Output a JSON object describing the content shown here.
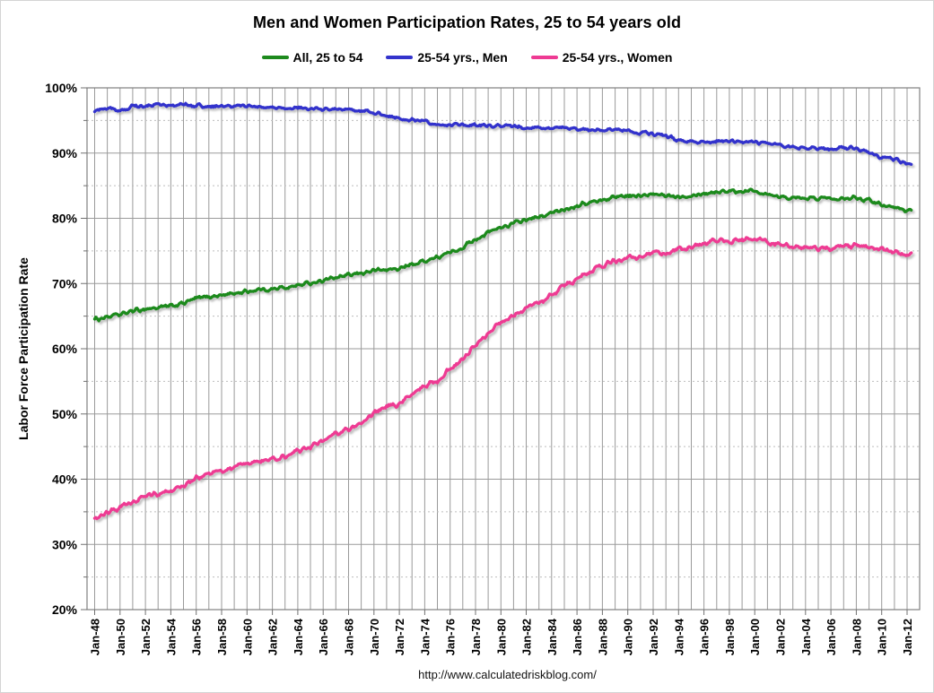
{
  "chart_data": {
    "type": "line",
    "title": "Men and Women Participation Rates, 25 to 54 years old",
    "ylabel": "Labor Force Participation Rate",
    "xlabel": "",
    "footer_url": "http://www.calculatedriskblog.com/",
    "ylim": [
      20,
      100
    ],
    "y_major_step": 10,
    "y_minor_step": 5,
    "y_tick_labels": [
      "100%",
      "90%",
      "80%",
      "70%",
      "60%",
      "50%",
      "40%",
      "30%",
      "20%"
    ],
    "x_start_year": 1948,
    "x_end_year": 2012,
    "x_extend_months": 4,
    "x_tick_interval_years": 2,
    "x_grid_interval_years": 1,
    "x_tick_labels": [
      "Jan-48",
      "Jan-50",
      "Jan-52",
      "Jan-54",
      "Jan-56",
      "Jan-58",
      "Jan-60",
      "Jan-62",
      "Jan-64",
      "Jan-66",
      "Jan-68",
      "Jan-70",
      "Jan-72",
      "Jan-74",
      "Jan-76",
      "Jan-78",
      "Jan-80",
      "Jan-82",
      "Jan-84",
      "Jan-86",
      "Jan-88",
      "Jan-90",
      "Jan-92",
      "Jan-94",
      "Jan-96",
      "Jan-98",
      "Jan-00",
      "Jan-02",
      "Jan-04",
      "Jan-06",
      "Jan-08",
      "Jan-10",
      "Jan-12"
    ],
    "legend_position": "top",
    "grid": {
      "major_color": "#9a9a9a",
      "minor_color": "#bdbdbd",
      "minor_dash": "2 3",
      "border_color": "#808080",
      "background": "#ffffff"
    },
    "annual_years_note": "values are annual anchors Jan-1948 through 2012, plotted monthly",
    "series": [
      {
        "name": "All, 25 to 54",
        "color": "#1D8A1D",
        "jitter": 0.45,
        "values": [
          64.5,
          64.9,
          65.2,
          65.8,
          66.1,
          66.3,
          66.5,
          67.0,
          67.7,
          68.0,
          68.2,
          68.5,
          68.8,
          69.1,
          69.1,
          69.4,
          69.7,
          70.1,
          70.5,
          70.9,
          71.2,
          71.6,
          72.0,
          72.1,
          72.3,
          72.9,
          73.5,
          74.0,
          74.7,
          75.6,
          76.8,
          77.8,
          78.6,
          79.2,
          79.8,
          80.1,
          80.8,
          81.4,
          82.0,
          82.4,
          82.8,
          83.3,
          83.5,
          83.4,
          83.6,
          83.5,
          83.4,
          83.6,
          83.8,
          84.1,
          84.2,
          84.2,
          84.2,
          83.8,
          83.4,
          83.1,
          83.0,
          83.1,
          83.1,
          83.2,
          83.2,
          82.8,
          82.2,
          81.6,
          81.3
        ]
      },
      {
        "name": "25-54 yrs., Men",
        "color": "#3333CC",
        "jitter": 0.4,
        "values": [
          96.6,
          96.9,
          96.4,
          97.1,
          97.2,
          97.4,
          97.3,
          97.4,
          97.3,
          97.2,
          97.1,
          97.3,
          97.2,
          97.1,
          96.9,
          96.9,
          96.9,
          96.8,
          96.7,
          96.6,
          96.6,
          96.5,
          96.1,
          95.7,
          95.3,
          95.1,
          94.8,
          94.4,
          94.3,
          94.3,
          94.3,
          94.3,
          94.2,
          94.1,
          94.0,
          93.9,
          93.9,
          93.8,
          93.7,
          93.6,
          93.6,
          93.6,
          93.5,
          93.2,
          93.0,
          92.7,
          91.9,
          91.7,
          91.7,
          91.8,
          91.9,
          91.8,
          91.7,
          91.4,
          91.1,
          90.9,
          90.8,
          90.7,
          90.7,
          90.9,
          90.8,
          90.1,
          89.4,
          89.0,
          88.4
        ]
      },
      {
        "name": "25-54 yrs., Women",
        "color": "#EE3A93",
        "jitter": 0.55,
        "values": [
          33.9,
          34.9,
          35.6,
          36.6,
          37.4,
          37.9,
          38.3,
          39.0,
          40.1,
          40.8,
          41.3,
          41.8,
          42.3,
          42.9,
          43.1,
          43.7,
          44.3,
          45.1,
          46.0,
          46.9,
          47.6,
          48.7,
          50.1,
          51.0,
          51.6,
          52.9,
          54.3,
          55.1,
          56.8,
          58.5,
          60.6,
          62.3,
          64.0,
          65.3,
          66.3,
          67.1,
          68.2,
          69.6,
          70.8,
          71.9,
          72.7,
          73.5,
          74.0,
          74.1,
          74.6,
          74.7,
          75.3,
          75.6,
          76.1,
          76.7,
          76.5,
          76.8,
          76.9,
          76.4,
          75.9,
          75.6,
          75.3,
          75.3,
          75.5,
          75.7,
          75.8,
          75.6,
          75.2,
          74.7,
          74.5
        ]
      }
    ]
  }
}
